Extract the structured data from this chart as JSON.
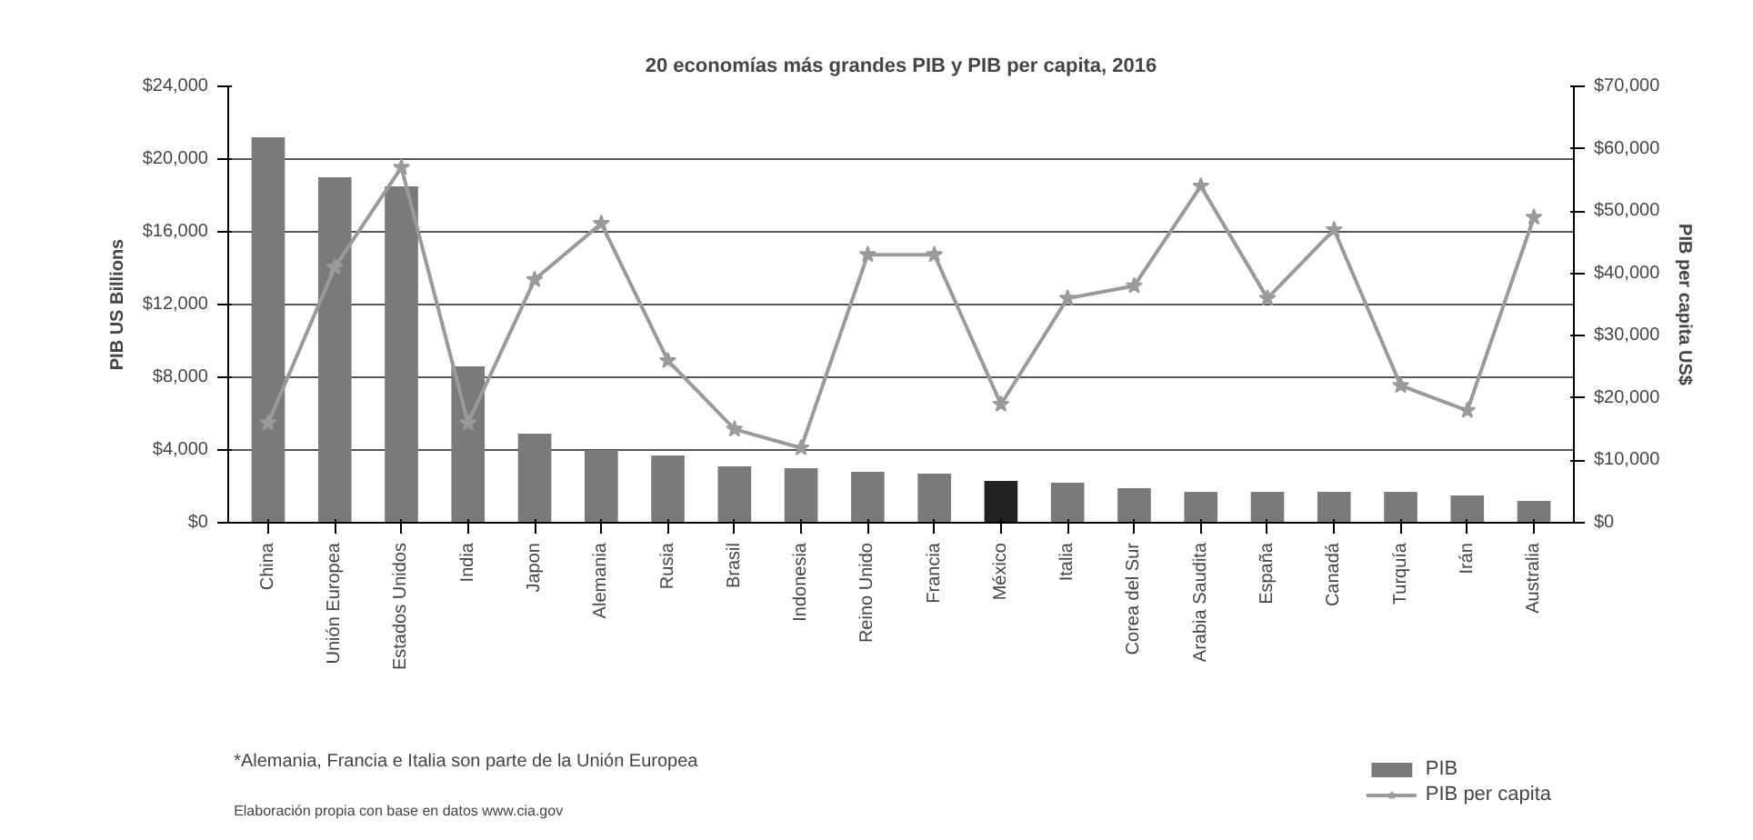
{
  "chart_data": {
    "type": "bar",
    "title": "20 economías más grandes PIB y PIB per capita, 2016",
    "ylabel": "PIB US Billions",
    "y2label": "PIB per capita US$",
    "categories": [
      "China",
      "Unión Europea",
      "Estados Unidos",
      "India",
      "Japon",
      "Alemania",
      "Rusia",
      "Brasil",
      "Indonesia",
      "Reino Unido",
      "Francia",
      "México",
      "Italia",
      "Corea del Sur",
      "Arabia Saudita",
      "España",
      "Canadá",
      "Turquía",
      "Irán",
      "Australia"
    ],
    "series": [
      {
        "name": "PIB",
        "type": "bar",
        "color": "#7a7a7a",
        "colors": [
          "#7a7a7a",
          "#7a7a7a",
          "#7a7a7a",
          "#7a7a7a",
          "#7a7a7a",
          "#7a7a7a",
          "#7a7a7a",
          "#7a7a7a",
          "#7a7a7a",
          "#7a7a7a",
          "#7a7a7a",
          "#222222",
          "#7a7a7a",
          "#7a7a7a",
          "#7a7a7a",
          "#7a7a7a",
          "#7a7a7a",
          "#7a7a7a",
          "#7a7a7a",
          "#7a7a7a"
        ],
        "values": [
          21200,
          19000,
          18500,
          8600,
          4900,
          4000,
          3700,
          3100,
          3000,
          2800,
          2700,
          2300,
          2200,
          1900,
          1700,
          1700,
          1700,
          1700,
          1500,
          1200
        ]
      },
      {
        "name": "PIB per capita",
        "type": "line",
        "axis": "y2",
        "color": "#9a9a9a",
        "marker": "star",
        "values": [
          16000,
          41000,
          57000,
          16000,
          39000,
          48000,
          26000,
          15000,
          12000,
          43000,
          43000,
          19000,
          36000,
          38000,
          54000,
          36000,
          47000,
          22000,
          18000,
          49000
        ]
      }
    ],
    "ylim": [
      0,
      24000
    ],
    "yticks": [
      {
        "value": 0,
        "label": "$0"
      },
      {
        "value": 4000,
        "label": "$4,000"
      },
      {
        "value": 8000,
        "label": "$8,000"
      },
      {
        "value": 12000,
        "label": "$12,000"
      },
      {
        "value": 16000,
        "label": "$16,000"
      },
      {
        "value": 20000,
        "label": "$20,000"
      },
      {
        "value": 24000,
        "label": "$24,000"
      }
    ],
    "y2lim": [
      0,
      70000
    ],
    "y2ticks": [
      {
        "value": 0,
        "label": "$0"
      },
      {
        "value": 10000,
        "label": "$10,000"
      },
      {
        "value": 20000,
        "label": "$20,000"
      },
      {
        "value": 30000,
        "label": "$30,000"
      },
      {
        "value": 40000,
        "label": "$40,000"
      },
      {
        "value": 50000,
        "label": "$50,000"
      },
      {
        "value": 60000,
        "label": "$60,000"
      },
      {
        "value": 70000,
        "label": "$70,000"
      }
    ],
    "grid": "y",
    "legend": "bottom right",
    "annotations": [
      "*Alemania, Francia e Italia son parte de la Unión Europea",
      "Elaboración propia con base en datos www.cia.gov"
    ]
  }
}
